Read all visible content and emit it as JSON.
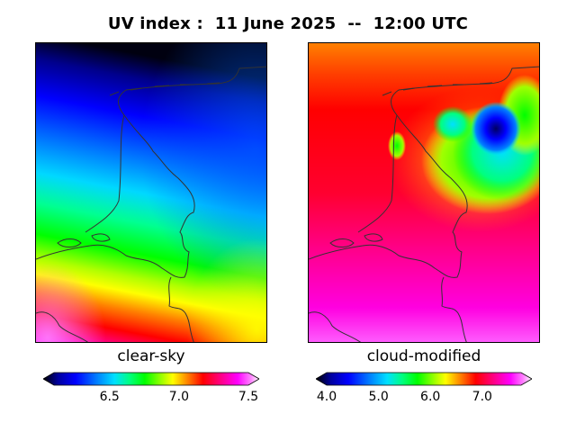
{
  "title": "UV index :  11 June 2025  --  12:00 UTC",
  "panels": {
    "left": {
      "label": "clear-sky"
    },
    "right": {
      "label": "cloud-modified"
    }
  },
  "colorbars": {
    "left": {
      "min": 6.1,
      "max": 7.5,
      "ticks": [
        "6.5",
        "7.0",
        "7.5"
      ]
    },
    "right": {
      "min": 4.0,
      "max": 7.75,
      "ticks": [
        "4.0",
        "5.0",
        "6.0",
        "7.0"
      ]
    }
  },
  "colors": {
    "scale": [
      "#000000",
      "#0000a0",
      "#0000ff",
      "#0080ff",
      "#00e0ff",
      "#00ff80",
      "#00ff00",
      "#a0ff00",
      "#ffff00",
      "#ff8000",
      "#ff0000",
      "#ff0080",
      "#ff00ff",
      "#ff80ff",
      "#ffffff"
    ],
    "coastline": "#333333"
  }
}
